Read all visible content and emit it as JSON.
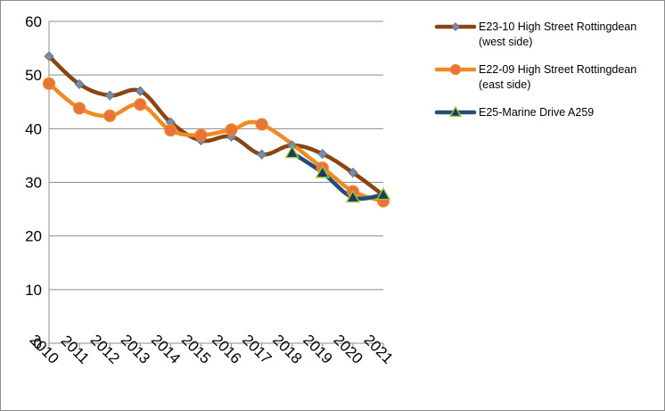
{
  "chart_data": {
    "type": "line",
    "categories": [
      "2010",
      "2011",
      "2012",
      "2013",
      "2014",
      "2015",
      "2016",
      "2017",
      "2018",
      "2019",
      "2020",
      "2021"
    ],
    "ylim": [
      0,
      60
    ],
    "yticks": [
      0,
      10,
      20,
      30,
      40,
      50,
      60
    ],
    "grid": true,
    "legend_position": "right",
    "title": "",
    "xlabel": "",
    "ylabel": "",
    "series": [
      {
        "name": "E23-10 High Street Rottingdean (west side)",
        "legend_lines": [
          "E23-10 High Street Rottingdean",
          "(west side)"
        ],
        "color": "#8B4513",
        "marker": "diamond",
        "marker_color": "#7A8BA8",
        "values": [
          53.5,
          48.3,
          46.2,
          47.0,
          41.2,
          37.8,
          38.5,
          35.2,
          36.9,
          35.3,
          31.8,
          27.6
        ]
      },
      {
        "name": "E22-09 High Street Rottingdean (east side)",
        "legend_lines": [
          "E22-09 High Street Rottingdean",
          "(east side)"
        ],
        "color": "#F08A24",
        "marker": "circle",
        "marker_color": "#E8743B",
        "values": [
          48.4,
          43.8,
          42.4,
          44.5,
          39.7,
          38.8,
          39.8,
          40.8,
          null,
          32.7,
          28.3,
          26.5
        ]
      },
      {
        "name": "E25-Marine Drive A259",
        "legend_lines": [
          "E25-Marine Drive A259"
        ],
        "color": "#1F4E79",
        "marker": "triangle",
        "marker_color": "#1F3A5F",
        "marker_edge": "#9ACD32",
        "values": [
          null,
          null,
          null,
          null,
          null,
          null,
          null,
          null,
          35.5,
          31.8,
          27.2,
          27.7
        ]
      }
    ]
  }
}
